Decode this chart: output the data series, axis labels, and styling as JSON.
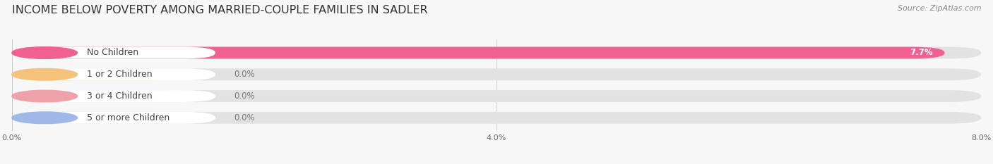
{
  "title": "INCOME BELOW POVERTY AMONG MARRIED-COUPLE FAMILIES IN SADLER",
  "source": "Source: ZipAtlas.com",
  "categories": [
    "No Children",
    "1 or 2 Children",
    "3 or 4 Children",
    "5 or more Children"
  ],
  "values": [
    7.7,
    0.0,
    0.0,
    0.0
  ],
  "bar_colors": [
    "#f06090",
    "#f5c27a",
    "#f0a0a8",
    "#a0b8e8"
  ],
  "xlim": [
    0,
    8.0
  ],
  "xticks": [
    0.0,
    4.0,
    8.0
  ],
  "xtick_labels": [
    "0.0%",
    "4.0%",
    "8.0%"
  ],
  "background_color": "#f7f7f7",
  "bar_bg_color": "#e2e2e2",
  "title_fontsize": 11.5,
  "label_fontsize": 9,
  "value_fontsize": 8.5,
  "source_fontsize": 8
}
